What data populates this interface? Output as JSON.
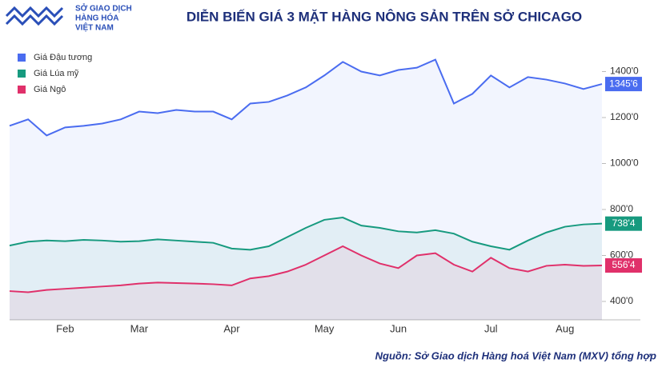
{
  "chart_data": {
    "type": "line",
    "title": "DIỄN BIẾN GIÁ 3 MẶT HÀNG NÔNG SẢN TRÊN SỞ CHICAGO",
    "logo": [
      "SỞ GIAO DỊCH",
      "HÀNG HÓA",
      "VIỆT NAM"
    ],
    "source": "Nguồn: Sở Giao dịch Hàng hoá Việt Nam (MXV) tổng hợp",
    "legend": "top-left",
    "categories": [
      null,
      null,
      null,
      "Feb",
      null,
      null,
      null,
      "Mar",
      null,
      null,
      null,
      null,
      "Apr",
      null,
      null,
      null,
      null,
      "May",
      null,
      null,
      null,
      "Jun",
      null,
      null,
      null,
      null,
      "Jul",
      null,
      null,
      null,
      "Aug",
      null,
      null
    ],
    "ylim": [
      320,
      1520
    ],
    "yticks": [
      {
        "value": 400,
        "label": "400'0"
      },
      {
        "value": 600,
        "label": "600'0"
      },
      {
        "value": 800,
        "label": "800'0"
      },
      {
        "value": 1000,
        "label": "1000'0"
      },
      {
        "value": 1200,
        "label": "1200'0"
      },
      {
        "value": 1400,
        "label": "1400'0"
      }
    ],
    "series": [
      {
        "name": "Giá Đậu tương",
        "color": "#4a6cf0",
        "values": [
          1164,
          1192,
          1122,
          1157,
          1164,
          1174,
          1192,
          1226,
          1219,
          1233,
          1226,
          1226,
          1192,
          1261,
          1268,
          1296,
          1331,
          1383,
          1442,
          1400,
          1383,
          1407,
          1417,
          1452,
          1261,
          1303,
          1383,
          1331,
          1376,
          1365,
          1348,
          1324,
          1345.75
        ],
        "value_labels": [
          null,
          null,
          null,
          null,
          null,
          null,
          null,
          null,
          null,
          null,
          null,
          null,
          null,
          null,
          null,
          null,
          null,
          null,
          null,
          null,
          null,
          null,
          null,
          null,
          null,
          null,
          null,
          null,
          null,
          null,
          null,
          null,
          "1345'6"
        ]
      },
      {
        "name": "Giá Lúa mỹ",
        "color": "#179a7f",
        "values": [
          643,
          660,
          665,
          662,
          668,
          665,
          660,
          662,
          670,
          665,
          660,
          655,
          630,
          625,
          640,
          680,
          720,
          755,
          765,
          730,
          720,
          705,
          700,
          710,
          695,
          660,
          640,
          625,
          665,
          700,
          725,
          735,
          738.5
        ],
        "value_labels": [
          null,
          null,
          null,
          null,
          null,
          null,
          null,
          null,
          null,
          null,
          null,
          null,
          null,
          null,
          null,
          null,
          null,
          null,
          null,
          null,
          null,
          null,
          null,
          null,
          null,
          null,
          null,
          null,
          null,
          null,
          null,
          null,
          "738'4"
        ]
      },
      {
        "name": "Giá Ngô",
        "color": "#e0306a",
        "values": [
          445,
          440,
          450,
          455,
          460,
          465,
          470,
          478,
          482,
          480,
          478,
          475,
          470,
          500,
          510,
          530,
          560,
          600,
          640,
          600,
          565,
          545,
          600,
          610,
          560,
          530,
          590,
          545,
          530,
          555,
          560,
          555,
          556.5
        ],
        "value_labels": [
          null,
          null,
          null,
          null,
          null,
          null,
          null,
          null,
          null,
          null,
          null,
          null,
          null,
          null,
          null,
          null,
          null,
          null,
          null,
          null,
          null,
          null,
          null,
          null,
          null,
          null,
          null,
          null,
          null,
          null,
          null,
          null,
          "556'4"
        ]
      }
    ]
  }
}
